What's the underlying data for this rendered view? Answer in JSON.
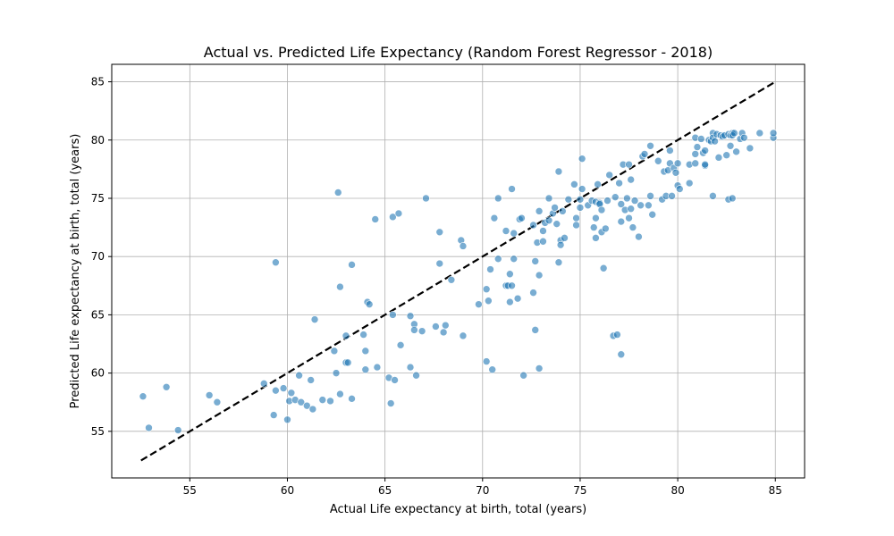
{
  "chart_data": {
    "type": "scatter",
    "title": "Actual vs. Predicted Life Expectancy (Random Forest Regressor - 2018)",
    "xlabel": "Actual Life expectancy at birth, total (years)",
    "ylabel": "Predicted Life expectancy at birth, total (years)",
    "xlim": [
      51.0,
      86.5
    ],
    "ylim": [
      51.0,
      86.5
    ],
    "xticks": [
      55,
      60,
      65,
      70,
      75,
      80,
      85
    ],
    "yticks": [
      55,
      60,
      65,
      70,
      75,
      80,
      85
    ],
    "grid": true,
    "point_color": "#1f77b4",
    "reference_line": {
      "x": [
        52.5,
        85.0
      ],
      "y": [
        52.5,
        85.0
      ],
      "style": "dashed",
      "color": "#000000"
    },
    "points": [
      [
        52.6,
        58.0
      ],
      [
        52.9,
        55.3
      ],
      [
        53.8,
        58.8
      ],
      [
        54.4,
        55.1
      ],
      [
        56.0,
        58.1
      ],
      [
        56.4,
        57.5
      ],
      [
        58.8,
        59.1
      ],
      [
        59.3,
        56.4
      ],
      [
        59.4,
        58.5
      ],
      [
        59.4,
        69.5
      ],
      [
        59.8,
        58.7
      ],
      [
        60.0,
        56.0
      ],
      [
        60.1,
        57.6
      ],
      [
        60.2,
        58.3
      ],
      [
        60.4,
        57.7
      ],
      [
        60.6,
        59.8
      ],
      [
        60.7,
        57.5
      ],
      [
        61.0,
        57.2
      ],
      [
        61.2,
        59.4
      ],
      [
        61.3,
        56.9
      ],
      [
        61.4,
        64.6
      ],
      [
        61.8,
        57.7
      ],
      [
        62.2,
        57.6
      ],
      [
        62.4,
        61.9
      ],
      [
        62.5,
        60.0
      ],
      [
        62.6,
        75.5
      ],
      [
        62.7,
        67.4
      ],
      [
        62.7,
        58.2
      ],
      [
        63.0,
        63.2
      ],
      [
        63.0,
        60.9
      ],
      [
        63.1,
        60.9
      ],
      [
        63.3,
        69.3
      ],
      [
        63.3,
        57.8
      ],
      [
        63.9,
        63.3
      ],
      [
        64.0,
        61.9
      ],
      [
        64.0,
        60.3
      ],
      [
        64.1,
        66.1
      ],
      [
        64.2,
        65.9
      ],
      [
        64.5,
        73.2
      ],
      [
        64.6,
        60.5
      ],
      [
        65.2,
        59.6
      ],
      [
        65.3,
        57.4
      ],
      [
        65.4,
        65.0
      ],
      [
        65.4,
        73.4
      ],
      [
        65.5,
        59.4
      ],
      [
        65.7,
        73.7
      ],
      [
        65.8,
        62.4
      ],
      [
        66.3,
        64.9
      ],
      [
        66.3,
        60.5
      ],
      [
        66.5,
        64.2
      ],
      [
        66.5,
        63.7
      ],
      [
        66.6,
        59.8
      ],
      [
        66.9,
        63.6
      ],
      [
        67.1,
        75.0
      ],
      [
        67.6,
        64.0
      ],
      [
        67.8,
        69.4
      ],
      [
        67.8,
        72.1
      ],
      [
        68.0,
        63.5
      ],
      [
        68.1,
        64.1
      ],
      [
        68.4,
        68.0
      ],
      [
        68.9,
        71.4
      ],
      [
        69.0,
        70.9
      ],
      [
        69.0,
        63.2
      ],
      [
        69.8,
        65.9
      ],
      [
        70.2,
        67.2
      ],
      [
        70.2,
        61.0
      ],
      [
        70.3,
        66.2
      ],
      [
        70.4,
        68.9
      ],
      [
        70.5,
        60.3
      ],
      [
        70.6,
        73.3
      ],
      [
        70.8,
        69.8
      ],
      [
        70.8,
        75.0
      ],
      [
        71.2,
        67.5
      ],
      [
        71.2,
        72.2
      ],
      [
        71.3,
        67.5
      ],
      [
        71.4,
        66.1
      ],
      [
        71.4,
        68.5
      ],
      [
        71.5,
        67.5
      ],
      [
        71.5,
        75.8
      ],
      [
        71.6,
        69.8
      ],
      [
        71.6,
        72.0
      ],
      [
        71.8,
        66.4
      ],
      [
        71.9,
        73.2
      ],
      [
        72.0,
        73.3
      ],
      [
        72.1,
        59.8
      ],
      [
        72.6,
        66.9
      ],
      [
        72.6,
        72.7
      ],
      [
        72.7,
        69.6
      ],
      [
        72.7,
        63.7
      ],
      [
        72.8,
        71.2
      ],
      [
        72.9,
        68.4
      ],
      [
        72.9,
        60.4
      ],
      [
        72.9,
        73.9
      ],
      [
        73.1,
        71.3
      ],
      [
        73.1,
        72.2
      ],
      [
        73.2,
        72.9
      ],
      [
        73.4,
        75.0
      ],
      [
        73.4,
        73.1
      ],
      [
        73.6,
        73.7
      ],
      [
        73.7,
        74.2
      ],
      [
        73.8,
        72.8
      ],
      [
        73.9,
        77.3
      ],
      [
        73.9,
        69.5
      ],
      [
        74.0,
        71.4
      ],
      [
        74.0,
        71.0
      ],
      [
        74.1,
        73.9
      ],
      [
        74.2,
        71.6
      ],
      [
        74.4,
        74.9
      ],
      [
        74.7,
        76.2
      ],
      [
        74.8,
        73.3
      ],
      [
        74.8,
        72.7
      ],
      [
        75.0,
        74.9
      ],
      [
        75.0,
        74.2
      ],
      [
        75.1,
        78.4
      ],
      [
        75.1,
        75.8
      ],
      [
        75.4,
        74.4
      ],
      [
        75.6,
        74.8
      ],
      [
        75.7,
        72.5
      ],
      [
        75.8,
        71.6
      ],
      [
        75.8,
        73.3
      ],
      [
        75.8,
        74.7
      ],
      [
        75.9,
        76.2
      ],
      [
        76.0,
        74.6
      ],
      [
        76.0,
        74.5
      ],
      [
        76.1,
        72.1
      ],
      [
        76.1,
        74.0
      ],
      [
        76.2,
        69.0
      ],
      [
        76.3,
        72.4
      ],
      [
        76.4,
        74.8
      ],
      [
        76.5,
        77.0
      ],
      [
        76.7,
        63.2
      ],
      [
        76.8,
        75.1
      ],
      [
        76.9,
        63.3
      ],
      [
        77.0,
        76.3
      ],
      [
        77.1,
        74.5
      ],
      [
        77.1,
        73.0
      ],
      [
        77.1,
        61.6
      ],
      [
        77.2,
        77.9
      ],
      [
        77.3,
        74.0
      ],
      [
        77.4,
        75.0
      ],
      [
        77.5,
        73.3
      ],
      [
        77.5,
        77.9
      ],
      [
        77.6,
        76.6
      ],
      [
        77.6,
        74.1
      ],
      [
        77.7,
        72.5
      ],
      [
        77.8,
        74.8
      ],
      [
        78.0,
        71.7
      ],
      [
        78.1,
        74.4
      ],
      [
        78.2,
        78.6
      ],
      [
        78.3,
        78.8
      ],
      [
        78.5,
        74.4
      ],
      [
        78.6,
        79.5
      ],
      [
        78.6,
        75.2
      ],
      [
        78.7,
        73.6
      ],
      [
        79.0,
        78.2
      ],
      [
        79.2,
        74.9
      ],
      [
        79.3,
        77.3
      ],
      [
        79.4,
        75.2
      ],
      [
        79.5,
        77.4
      ],
      [
        79.6,
        79.1
      ],
      [
        79.6,
        78.0
      ],
      [
        79.7,
        75.2
      ],
      [
        79.8,
        77.6
      ],
      [
        79.9,
        77.2
      ],
      [
        80.0,
        78.0
      ],
      [
        80.0,
        76.1
      ],
      [
        80.1,
        75.8
      ],
      [
        80.6,
        76.3
      ],
      [
        80.6,
        77.9
      ],
      [
        80.9,
        78.8
      ],
      [
        80.9,
        80.2
      ],
      [
        80.9,
        78.0
      ],
      [
        81.0,
        79.4
      ],
      [
        81.2,
        80.1
      ],
      [
        81.3,
        78.9
      ],
      [
        81.4,
        77.8
      ],
      [
        81.4,
        77.9
      ],
      [
        81.4,
        79.1
      ],
      [
        81.6,
        80.0
      ],
      [
        81.7,
        79.9
      ],
      [
        81.8,
        80.6
      ],
      [
        81.8,
        80.2
      ],
      [
        81.8,
        75.2
      ],
      [
        81.9,
        79.9
      ],
      [
        82.0,
        80.5
      ],
      [
        82.1,
        78.5
      ],
      [
        82.2,
        80.4
      ],
      [
        82.3,
        80.3
      ],
      [
        82.4,
        80.4
      ],
      [
        82.5,
        78.7
      ],
      [
        82.6,
        80.5
      ],
      [
        82.6,
        74.9
      ],
      [
        82.7,
        80.4
      ],
      [
        82.7,
        79.5
      ],
      [
        82.8,
        80.6
      ],
      [
        82.8,
        75.0
      ],
      [
        82.8,
        80.4
      ],
      [
        82.9,
        80.6
      ],
      [
        83.0,
        79.0
      ],
      [
        83.2,
        80.1
      ],
      [
        83.3,
        80.6
      ],
      [
        83.4,
        80.2
      ],
      [
        83.7,
        79.3
      ],
      [
        84.2,
        80.6
      ],
      [
        84.9,
        80.2
      ],
      [
        84.9,
        80.6
      ]
    ]
  }
}
